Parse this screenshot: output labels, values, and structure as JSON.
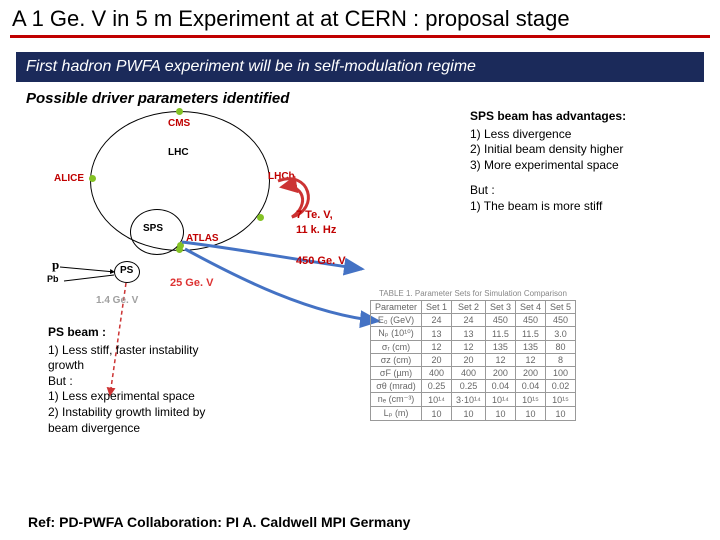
{
  "title": "A 1 Ge. V in 5 m Experiment at at CERN : proposal stage",
  "banner": "First hadron PWFA experiment will be in self-modulation regime",
  "subtitle": "Possible driver parameters identified",
  "ref": "Ref: PD-PWFA Collaboration: PI A. Caldwell MPI Germany",
  "diagram": {
    "lhc": "LHC",
    "cms": "CMS",
    "alice": "ALICE",
    "atlas": "ATLAS",
    "lhcb": "LHCb",
    "sps": "SPS",
    "ps_ring": "PS",
    "p": "p",
    "pb": "Pb",
    "g14": "1.4 Ge. V",
    "g25": "25 Ge. V",
    "tev": "7 Te. V,",
    "khz": "11 k. Hz",
    "g450": "450 Ge. V"
  },
  "sps_adv": {
    "head": "SPS beam has advantages:",
    "i1": "1)  Less divergence",
    "i2": "2)  Initial beam density higher",
    "i3": "3)  More experimental space",
    "but": "But :",
    "b1": "1)  The beam is more stiff"
  },
  "ps_adv": {
    "head": "PS beam :",
    "i1": "1)  Less stiff, faster instability",
    "i1b": "     growth",
    "but": "But :",
    "b1": "1)  Less experimental space",
    "b2": "2)  Instability growth limited by",
    "b2b": "     beam divergence"
  },
  "table": {
    "caption": "TABLE 1.  Parameter Sets for Simulation Comparison",
    "cols": [
      "Parameter",
      "Set 1",
      "Set 2",
      "Set 3",
      "Set 4",
      "Set 5"
    ],
    "rows": [
      [
        "E₀ (GeV)",
        "24",
        "24",
        "450",
        "450",
        "450"
      ],
      [
        "Nₚ (10¹⁰)",
        "13",
        "13",
        "11.5",
        "11.5",
        "3.0"
      ],
      [
        "σᵣ (cm)",
        "12",
        "12",
        "135",
        "135",
        "80"
      ],
      [
        "σz (cm)",
        "20",
        "20",
        "12",
        "12",
        "8"
      ],
      [
        "σF (µm)",
        "400",
        "400",
        "200",
        "200",
        "100"
      ],
      [
        "σθ (mrad)",
        "0.25",
        "0.25",
        "0.04",
        "0.04",
        "0.02"
      ],
      [
        "nₑ (cm⁻³)",
        "10¹⁴",
        "3·10¹⁴",
        "10¹⁴",
        "10¹⁵",
        "10¹⁵"
      ],
      [
        "Lₚ (m)",
        "10",
        "10",
        "10",
        "10",
        "10"
      ]
    ]
  },
  "colors": {
    "rule": "#c00000",
    "banner_bg": "#1b2a5a",
    "green": "#84c225",
    "arrow_red": "#cc3333",
    "arrow_blue": "#4472c4",
    "grey": "#a0a0a0"
  }
}
